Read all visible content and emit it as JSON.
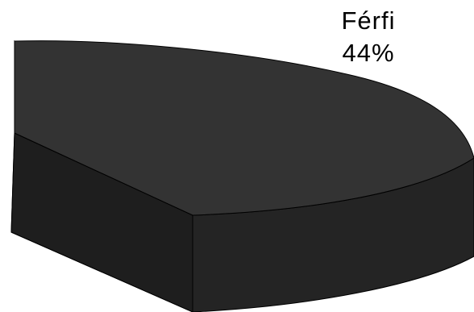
{
  "chart_data": {
    "type": "pie",
    "three_d": true,
    "slices": [
      {
        "name": "Férfi",
        "value": 44,
        "label": "44%",
        "color_top": "#333333",
        "color_side": "#1e1e1e",
        "color_front": "#242424"
      }
    ],
    "legend": "none",
    "grid": false
  }
}
